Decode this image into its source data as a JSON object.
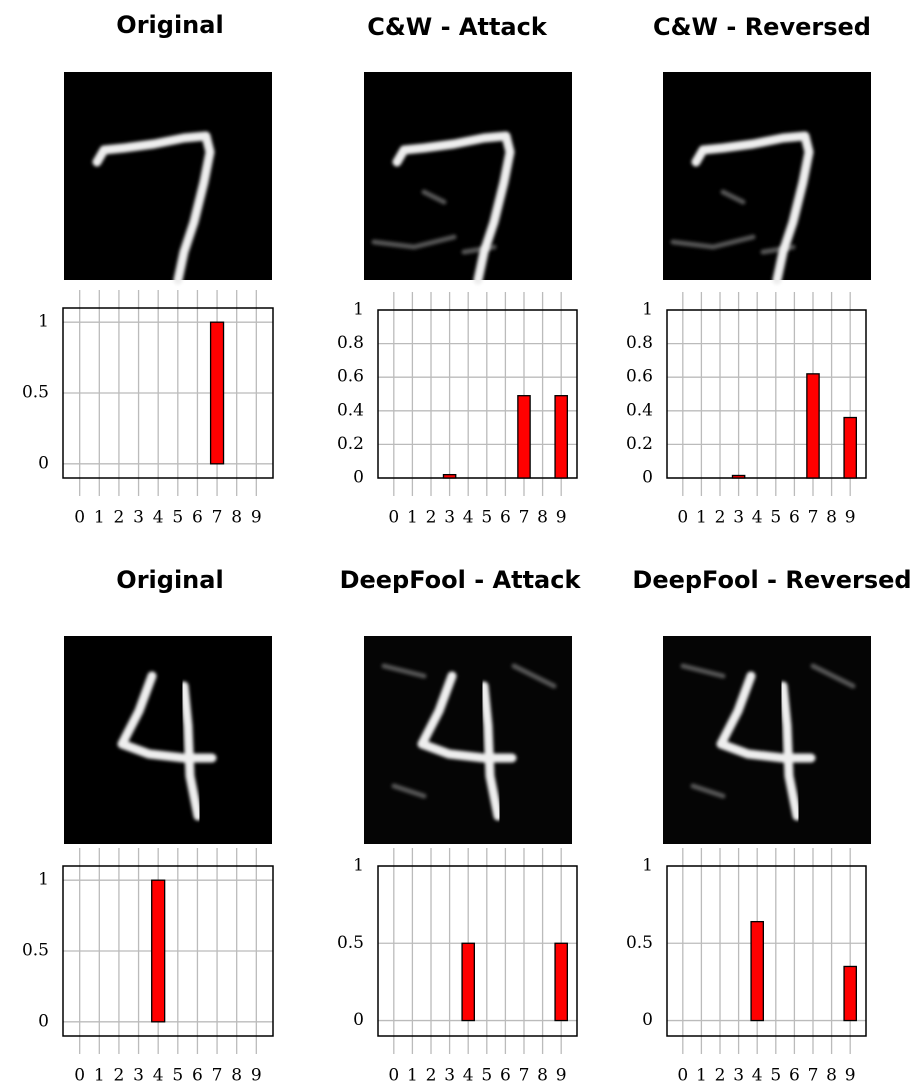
{
  "chart_data": [
    {
      "type": "bar",
      "title": "Original",
      "categories": [
        "0",
        "1",
        "2",
        "3",
        "4",
        "5",
        "6",
        "7",
        "8",
        "9"
      ],
      "values": [
        0,
        0,
        0,
        0,
        0,
        0,
        0,
        1,
        0,
        0
      ],
      "color": "#ff0000",
      "ylim": [
        -0.1,
        1.1
      ],
      "yticks": [
        0,
        0.5,
        1
      ],
      "grid": true
    },
    {
      "type": "bar",
      "title": "C&W - Attack",
      "categories": [
        "0",
        "1",
        "2",
        "3",
        "4",
        "5",
        "6",
        "7",
        "8",
        "9"
      ],
      "values": [
        0,
        0,
        0,
        0.02,
        0,
        0,
        0,
        0.49,
        0,
        0.49
      ],
      "color": "#ff0000",
      "ylim": [
        0,
        1
      ],
      "yticks": [
        0,
        0.2,
        0.4,
        0.6,
        0.8,
        1
      ],
      "grid": true
    },
    {
      "type": "bar",
      "title": "C&W - Reversed",
      "categories": [
        "0",
        "1",
        "2",
        "3",
        "4",
        "5",
        "6",
        "7",
        "8",
        "9"
      ],
      "values": [
        0,
        0,
        0,
        0.015,
        0,
        0,
        0,
        0.62,
        0,
        0.36
      ],
      "color": "#ff0000",
      "ylim": [
        0,
        1
      ],
      "yticks": [
        0,
        0.2,
        0.4,
        0.6,
        0.8,
        1
      ],
      "grid": true
    },
    {
      "type": "bar",
      "title": "Original",
      "categories": [
        "0",
        "1",
        "2",
        "3",
        "4",
        "5",
        "6",
        "7",
        "8",
        "9"
      ],
      "values": [
        0,
        0,
        0,
        0,
        1,
        0,
        0,
        0,
        0,
        0
      ],
      "color": "#ff0000",
      "ylim": [
        -0.1,
        1.1
      ],
      "yticks": [
        0,
        0.5,
        1
      ],
      "grid": true
    },
    {
      "type": "bar",
      "title": "DeepFool - Attack",
      "categories": [
        "0",
        "1",
        "2",
        "3",
        "4",
        "5",
        "6",
        "7",
        "8",
        "9"
      ],
      "values": [
        0,
        0,
        0,
        0,
        0.5,
        0,
        0,
        0,
        0,
        0.5
      ],
      "color": "#ff0000",
      "ylim": [
        -0.1,
        1
      ],
      "yticks": [
        0,
        0.5,
        1
      ],
      "grid": true
    },
    {
      "type": "bar",
      "title": "DeepFool - Reversed",
      "categories": [
        "0",
        "1",
        "2",
        "3",
        "4",
        "5",
        "6",
        "7",
        "8",
        "9"
      ],
      "values": [
        0,
        0,
        0,
        0,
        0.64,
        0,
        0,
        0,
        0,
        0.35
      ],
      "color": "#ff0000",
      "ylim": [
        -0.1,
        1
      ],
      "yticks": [
        0,
        0.5,
        1
      ],
      "grid": true
    }
  ]
}
